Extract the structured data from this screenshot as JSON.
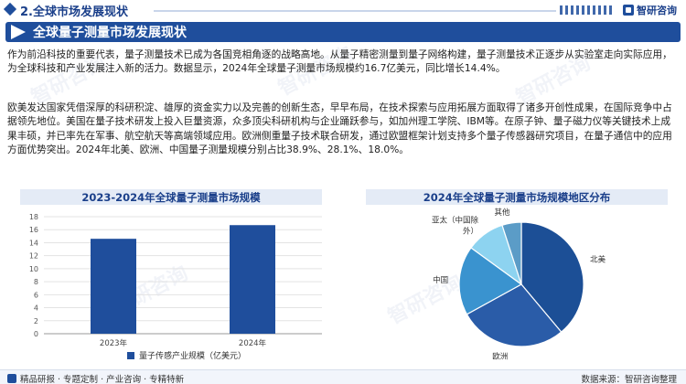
{
  "header": {
    "section_title": "2.全球市场发展现状",
    "brand": "智研咨询"
  },
  "banner": {
    "title": "全球量子测量市场发展现状"
  },
  "body": {
    "paragraph1": "作为前沿科技的重要代表，量子测量技术已成为各国竞相角逐的战略高地。从量子精密测量到量子网络构建，量子测量技术正逐步从实验室走向实际应用，为全球科技和产业发展注入新的活力。数据显示，2024年全球量子测量市场规模约16.7亿美元，同比增长14.4%。",
    "paragraph2": "欧美发达国家凭借深厚的科研积淀、雄厚的资金实力以及完善的创新生态，早早布局，在技术探索与应用拓展方面取得了诸多开创性成果，在国际竞争中占据领先地位。美国在量子技术研发上投入巨量资源，众多顶尖科研机构与企业踊跃参与，如加州理工学院、IBM等。在原子钟、量子磁力仪等关键技术上成果丰硕，并已率先在军事、航空航天等高端领域应用。欧洲侧重量子技术联合研发，通过欧盟框架计划支持多个量子传感器研究项目，在量子通信中的应用方面优势突出。2024年北美、欧洲、中国量子测量规模分别占比38.9%、28.1%、18.0%。"
  },
  "chart_data": [
    {
      "type": "bar",
      "title": "2023-2024年全球量子测量市场规模",
      "categories": [
        "2023年",
        "2024年"
      ],
      "series": [
        {
          "name": "量子传感产业规模（亿美元）",
          "values": [
            14.6,
            16.7
          ]
        }
      ],
      "yticks": [
        "0",
        "2",
        "4",
        "6",
        "8",
        "10",
        "12",
        "14",
        "16",
        "18"
      ],
      "ylim": [
        0,
        18
      ],
      "grid": true,
      "legend": "bottom",
      "color": "#1f4e9c"
    },
    {
      "type": "pie",
      "title": "2024年全球量子测量市场规模地区分布",
      "labels": [
        "北美",
        "欧洲",
        "中国",
        "亚太（中国除外）",
        "其他"
      ],
      "values": [
        38.9,
        28.1,
        18.0,
        10.0,
        5.0
      ],
      "label_lines": [
        [
          "北美"
        ],
        [
          "欧洲"
        ],
        [
          "中国"
        ],
        [
          "亚太（中国除",
          "外）"
        ],
        [
          "其他"
        ]
      ],
      "colors": [
        "#1c4f96",
        "#2a5ca8",
        "#3a93cf",
        "#8dd3f0",
        "#5b9cc7"
      ]
    }
  ],
  "footer": {
    "left": "精品研报 · 专题定制 · 产业咨询 · 专精特新",
    "right": "数据来源：智研咨询整理"
  },
  "watermark": "智研咨询"
}
